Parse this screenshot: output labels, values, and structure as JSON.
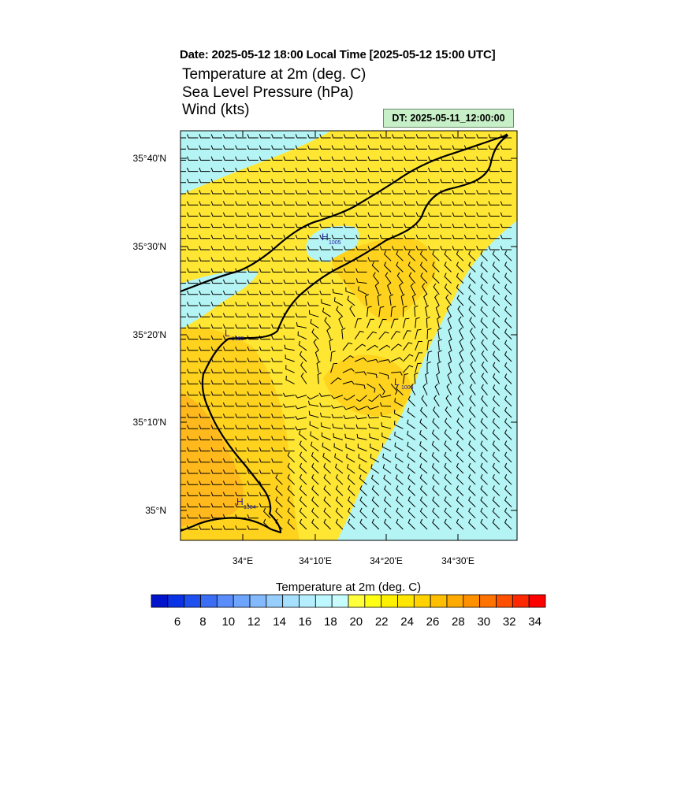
{
  "header": {
    "date_line": "Date: 2025-05-12  18:00 Local Time [2025-05-12  15:00 UTC]",
    "titles": [
      "Temperature at 2m   (deg. C)",
      "Sea Level Pressure   (hPa)",
      "Wind   (kts)"
    ],
    "dt_label": "DT: 2025-05-11_12:00:00"
  },
  "map": {
    "lat_labels": [
      "35°40'N",
      "35°30'N",
      "35°20'N",
      "35°10'N",
      "35°N"
    ],
    "lon_labels": [
      "34°E",
      "34°10'E",
      "34°20'E",
      "34°30'E"
    ],
    "pressure_centers": [
      {
        "type": "H",
        "value": "1005"
      },
      {
        "type": "L",
        "value": "1005"
      },
      {
        "type": "L",
        "value": "1004"
      },
      {
        "type": "H",
        "value": "1004"
      }
    ],
    "colors": {
      "cool": "#b4f4f4",
      "warm_light": "#ffff3c",
      "warm": "#ffe632",
      "warm_mid": "#ffd21e",
      "hot": "#ffb91c",
      "coast": "#000000",
      "pressure_label": "#1a1a9e"
    }
  },
  "colorbar": {
    "title": "Temperature at 2m  (deg. C)",
    "tick_labels": [
      "6",
      "8",
      "10",
      "12",
      "14",
      "16",
      "18",
      "20",
      "22",
      "24",
      "26",
      "28",
      "30",
      "32",
      "34"
    ],
    "colors": [
      "#0014cc",
      "#0a32e6",
      "#1e50f0",
      "#3c6ef5",
      "#5a8cfa",
      "#6ea5fc",
      "#82bafd",
      "#96cffe",
      "#a6e0ff",
      "#b4eeff",
      "#bef8ff",
      "#c8fdff",
      "#ffff3c",
      "#ffff14",
      "#fff000",
      "#ffe600",
      "#ffd200",
      "#ffbe00",
      "#ffaa00",
      "#ff9100",
      "#ff7300",
      "#ff5000",
      "#ff2800",
      "#ff0000"
    ]
  }
}
